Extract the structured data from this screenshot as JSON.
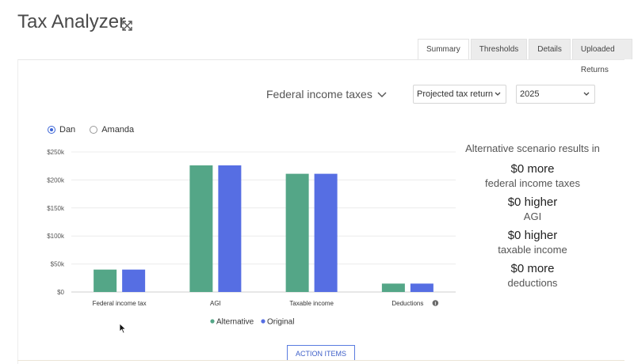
{
  "app": {
    "title": "Tax Analyzer"
  },
  "tabs": [
    {
      "label": "Summary",
      "active": true
    },
    {
      "label": "Thresholds",
      "active": false
    },
    {
      "label": "Details",
      "active": false
    },
    {
      "label": "Uploaded Returns",
      "active": false
    }
  ],
  "filters": {
    "tax_type": "Federal income taxes",
    "return_type": "Projected tax return",
    "year": "2025"
  },
  "people": [
    {
      "label": "Dan",
      "selected": true
    },
    {
      "label": "Amanda",
      "selected": false
    }
  ],
  "chart_data": {
    "type": "bar",
    "categories": [
      "Federal income tax",
      "AGI",
      "Taxable income",
      "Deductions"
    ],
    "series": [
      {
        "name": "Alternative",
        "color": "#54a687",
        "values": [
          40000,
          226000,
          211000,
          15000
        ]
      },
      {
        "name": "Original",
        "color": "#566ee3",
        "values": [
          40000,
          226000,
          211000,
          15000
        ]
      }
    ],
    "y_ticks": [
      0,
      50000,
      100000,
      150000,
      200000,
      250000
    ],
    "y_tick_labels": [
      "$0",
      "$50k",
      "$100k",
      "$150k",
      "$200k",
      "$250k"
    ],
    "ylim": [
      0,
      250000
    ],
    "grid": true,
    "legend_position": "bottom",
    "info_icon_category": "Deductions"
  },
  "results": {
    "title": "Alternative scenario results in",
    "items": [
      {
        "value": "$0 more",
        "label": "federal income taxes"
      },
      {
        "value": "$0 higher",
        "label": "AGI"
      },
      {
        "value": "$0 higher",
        "label": "taxable income"
      },
      {
        "value": "$0 more",
        "label": "deductions"
      }
    ]
  },
  "actions": {
    "action_items_label": "ACTION ITEMS"
  }
}
